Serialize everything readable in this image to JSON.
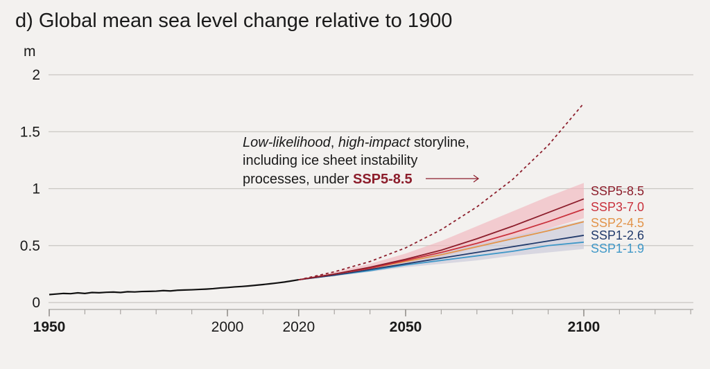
{
  "chart_data": {
    "type": "line",
    "title": "d) Global mean sea level change relative to 1900",
    "ylabel": "m",
    "xlim": [
      1950,
      2130
    ],
    "ylim": [
      0,
      2
    ],
    "x_ticks": [
      1950,
      2000,
      2020,
      2050,
      2100
    ],
    "y_ticks": [
      0,
      0.5,
      1,
      1.5,
      2
    ],
    "y_tick_labels": [
      "0",
      "0.5",
      "1",
      "1.5",
      "2"
    ],
    "grid": true,
    "historical": {
      "x": [
        1950,
        1952,
        1954,
        1956,
        1958,
        1960,
        1962,
        1964,
        1966,
        1968,
        1970,
        1972,
        1974,
        1976,
        1978,
        1980,
        1982,
        1984,
        1986,
        1988,
        1990,
        1992,
        1994,
        1996,
        1998,
        2000,
        2002,
        2004,
        2006,
        2008,
        2010,
        2012,
        2014,
        2016,
        2018,
        2020
      ],
      "y": [
        0.07,
        0.075,
        0.08,
        0.078,
        0.085,
        0.08,
        0.088,
        0.086,
        0.09,
        0.092,
        0.088,
        0.095,
        0.093,
        0.097,
        0.098,
        0.1,
        0.105,
        0.102,
        0.108,
        0.11,
        0.112,
        0.115,
        0.118,
        0.122,
        0.128,
        0.132,
        0.137,
        0.141,
        0.146,
        0.152,
        0.158,
        0.165,
        0.172,
        0.18,
        0.19,
        0.2
      ],
      "color": "#111111"
    },
    "series": [
      {
        "name": "SSP5-8.5",
        "color": "#8c1d2b",
        "x": [
          2020,
          2030,
          2040,
          2050,
          2060,
          2070,
          2080,
          2090,
          2100
        ],
        "y": [
          0.2,
          0.25,
          0.31,
          0.38,
          0.46,
          0.56,
          0.67,
          0.79,
          0.91
        ],
        "band": {
          "lo": [
            0.2,
            0.24,
            0.29,
            0.34,
            0.4,
            0.48,
            0.56,
            0.65,
            0.74
          ],
          "hi": [
            0.2,
            0.27,
            0.34,
            0.43,
            0.54,
            0.67,
            0.8,
            0.93,
            1.05
          ]
        },
        "band_color": "#f1b7bd"
      },
      {
        "name": "SSP3-7.0",
        "color": "#c9313c",
        "x": [
          2020,
          2030,
          2040,
          2050,
          2060,
          2070,
          2080,
          2090,
          2100
        ],
        "y": [
          0.2,
          0.25,
          0.3,
          0.37,
          0.44,
          0.52,
          0.61,
          0.71,
          0.82
        ]
      },
      {
        "name": "SSP2-4.5",
        "color": "#e2944a",
        "x": [
          2020,
          2030,
          2040,
          2050,
          2060,
          2070,
          2080,
          2090,
          2100
        ],
        "y": [
          0.2,
          0.25,
          0.3,
          0.36,
          0.42,
          0.49,
          0.56,
          0.63,
          0.71
        ]
      },
      {
        "name": "SSP1-2.6",
        "color": "#213a6b",
        "x": [
          2020,
          2030,
          2040,
          2050,
          2060,
          2070,
          2080,
          2090,
          2100
        ],
        "y": [
          0.2,
          0.24,
          0.29,
          0.34,
          0.39,
          0.44,
          0.49,
          0.54,
          0.59
        ],
        "band": {
          "lo": [
            0.2,
            0.23,
            0.27,
            0.31,
            0.34,
            0.37,
            0.41,
            0.44,
            0.47
          ],
          "hi": [
            0.2,
            0.25,
            0.31,
            0.37,
            0.44,
            0.51,
            0.58,
            0.65,
            0.72
          ]
        },
        "band_color": "#c9c9d8"
      },
      {
        "name": "SSP1-1.9",
        "color": "#3e97c7",
        "x": [
          2020,
          2030,
          2040,
          2050,
          2060,
          2070,
          2080,
          2090,
          2100
        ],
        "y": [
          0.2,
          0.24,
          0.28,
          0.33,
          0.37,
          0.41,
          0.45,
          0.5,
          0.53
        ]
      }
    ],
    "storyline": {
      "color": "#8c1d2b",
      "style": "dashed",
      "x": [
        2020,
        2030,
        2040,
        2050,
        2060,
        2070,
        2080,
        2090,
        2100
      ],
      "y": [
        0.2,
        0.27,
        0.36,
        0.48,
        0.64,
        0.84,
        1.08,
        1.38,
        1.75
      ]
    },
    "annotation": {
      "line1_italic_a": "Low-likelihood",
      "line1_sep": ", ",
      "line1_italic_b": "high-impact",
      "line1_rest": " storyline,",
      "line2": "including ice sheet instability",
      "line3": "processes, under ",
      "line3_highlight": "SSP5-8.5",
      "highlight_color": "#8c1d2b"
    }
  }
}
